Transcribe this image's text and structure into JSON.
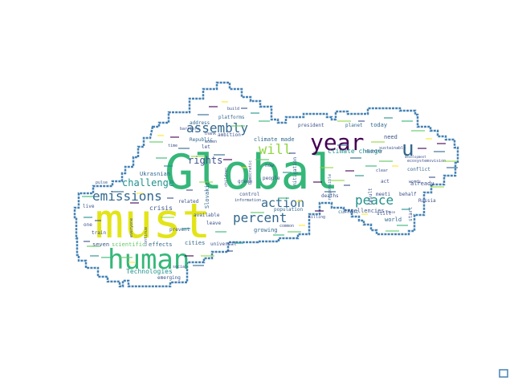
{
  "wordcloud": {
    "colors": {
      "outline": "#4682b4",
      "dark_teal": "#2f6b8e",
      "palette": [
        "#3b528b",
        "#21918c",
        "#35b779",
        "#5ec962",
        "#fde725",
        "#440154",
        "#31688e",
        "#90d743"
      ]
    },
    "words": [
      {
        "id": "w-global",
        "text": "Global",
        "color": "#35b779"
      },
      {
        "id": "w-must",
        "text": "must",
        "color": "#e3e418"
      },
      {
        "id": "w-human",
        "text": "human",
        "color": "#35b779"
      },
      {
        "id": "w-year",
        "text": "year",
        "color": "#440154"
      },
      {
        "id": "w-u",
        "text": "u",
        "color": "#31688e"
      },
      {
        "id": "w-emissions",
        "text": "emissions",
        "color": "#31688e"
      },
      {
        "id": "w-assembly",
        "text": "assembly",
        "color": "#31688e"
      },
      {
        "id": "w-percent",
        "text": "percent",
        "color": "#31688e"
      },
      {
        "id": "w-action",
        "text": "action",
        "color": "#31688e"
      },
      {
        "id": "w-peace",
        "text": "peace",
        "color": "#21918c"
      },
      {
        "id": "w-will",
        "text": "will",
        "color": "#90d743"
      },
      {
        "id": "w-challenge",
        "text": "challenge",
        "color": "#21918c"
      },
      {
        "id": "w-rights",
        "text": "rights",
        "color": "#3b528b"
      },
      {
        "id": "w-crisis",
        "text": "crisis",
        "color": "#3b528b"
      },
      {
        "id": "w-technologies",
        "text": "Technologies",
        "color": "#21918c"
      },
      {
        "id": "w-ukrasnian",
        "text": "Ukrasnian",
        "color": "#31688e"
      },
      {
        "id": "w-climate-change",
        "text": "climate change",
        "color": "#21918c"
      },
      {
        "id": "w-climate-made",
        "text": "climate made",
        "color": "#31688e"
      },
      {
        "id": "w-excellencies",
        "text": "excellencies",
        "color": "#3b528b"
      },
      {
        "id": "w-world",
        "text": "world",
        "color": "#31688e"
      },
      {
        "id": "w-today",
        "text": "today",
        "color": "#31688e"
      },
      {
        "id": "w-need",
        "text": "need",
        "color": "#3b528b"
      },
      {
        "id": "w-planet",
        "text": "planet",
        "color": "#31688e"
      },
      {
        "id": "w-president",
        "text": "president",
        "color": "#3b528b"
      },
      {
        "id": "w-platforms",
        "text": "platforms",
        "color": "#31688e"
      },
      {
        "id": "w-address",
        "text": "address",
        "color": "#31688e"
      },
      {
        "id": "w-build",
        "text": "build",
        "color": "#3b528b"
      },
      {
        "id": "w-republic",
        "text": "Republic",
        "color": "#31688e"
      },
      {
        "id": "w-ambition",
        "text": "ambition",
        "color": "#3b528b"
      },
      {
        "id": "w-let",
        "text": "let",
        "color": "#3b528b"
      },
      {
        "id": "w-seven",
        "text": "seven",
        "color": "#3b528b"
      },
      {
        "id": "w-train",
        "text": "train",
        "color": "#3b528b"
      },
      {
        "id": "w-effects",
        "text": "effects",
        "color": "#31688e"
      },
      {
        "id": "w-cities",
        "text": "cities",
        "color": "#31688e"
      },
      {
        "id": "w-emerging",
        "text": "emerging",
        "color": "#3b528b"
      },
      {
        "id": "w-prevent",
        "text": "prevent",
        "color": "#3b528b"
      },
      {
        "id": "w-available",
        "text": "available",
        "color": "#3b528b"
      },
      {
        "id": "w-leave",
        "text": "leave",
        "color": "#3b528b"
      },
      {
        "id": "w-universal",
        "text": "universal",
        "color": "#3b528b"
      },
      {
        "id": "w-related",
        "text": "related",
        "color": "#3b528b"
      },
      {
        "id": "w-women",
        "text": "women",
        "color": "#3b528b"
      },
      {
        "id": "w-growing",
        "text": "growing",
        "color": "#31688e"
      },
      {
        "id": "w-population",
        "text": "population",
        "color": "#31688e"
      },
      {
        "id": "w-people",
        "text": "people",
        "color": "#3b528b"
      },
      {
        "id": "w-green",
        "text": "green",
        "color": "#3b528b"
      },
      {
        "id": "w-now",
        "text": "now",
        "color": "#3b528b"
      },
      {
        "id": "w-democratic",
        "text": "Democratic",
        "color": "#3b528b"
      },
      {
        "id": "w-slovakia",
        "text": "Slovakia",
        "color": "#31688e"
      },
      {
        "id": "w-deaths",
        "text": "deaths",
        "color": "#3b528b"
      },
      {
        "id": "w-mitigation",
        "text": "mitigation",
        "color": "#31688e"
      },
      {
        "id": "w-responsible",
        "text": "responsible",
        "color": "#31688e"
      },
      {
        "id": "w-current",
        "text": "current",
        "color": "#31688e"
      },
      {
        "id": "w-still",
        "text": "still",
        "color": "#3b528b"
      },
      {
        "id": "w-already",
        "text": "already",
        "color": "#3b528b"
      },
      {
        "id": "w-act",
        "text": "act",
        "color": "#3b528b"
      },
      {
        "id": "w-russia",
        "text": "Russia",
        "color": "#3b528b"
      },
      {
        "id": "w-conflict",
        "text": "conflict",
        "color": "#31688e"
      },
      {
        "id": "w-behalf",
        "text": "behalf",
        "color": "#3b528b"
      },
      {
        "id": "w-start",
        "text": "start",
        "color": "#3b528b"
      },
      {
        "id": "w-result",
        "text": "result",
        "color": "#3b528b"
      },
      {
        "id": "w-meeti",
        "text": "meeti",
        "color": "#3b528b"
      },
      {
        "id": "w-dignity",
        "text": "dignity",
        "color": "#3b528b"
      },
      {
        "id": "w-ecosystem",
        "text": "ecosystemsvision",
        "color": "#3b528b"
      },
      {
        "id": "w-sustainable",
        "text": "sustainable",
        "color": "#3b528b"
      },
      {
        "id": "w-words",
        "text": "words",
        "color": "#3b528b"
      },
      {
        "id": "w-development",
        "text": "development",
        "color": "#3b528b"
      },
      {
        "id": "w-children",
        "text": "children",
        "color": "#3b528b"
      },
      {
        "id": "w-control",
        "text": "control",
        "color": "#3b528b"
      },
      {
        "id": "w-information",
        "text": "information",
        "color": "#3b528b"
      },
      {
        "id": "w-everyone",
        "text": "everyone",
        "color": "#3b528b"
      },
      {
        "id": "w-continue",
        "text": "continue",
        "color": "#3b528b"
      },
      {
        "id": "w-scientific",
        "text": "scientific",
        "color": "#5ec962"
      },
      {
        "id": "w-one",
        "text": "one",
        "color": "#3b528b"
      },
      {
        "id": "w-live",
        "text": "live",
        "color": "#3b528b"
      },
      {
        "id": "w-pulse",
        "text": "pulse",
        "color": "#3b528b"
      },
      {
        "id": "w-time",
        "text": "time",
        "color": "#3b528b"
      },
      {
        "id": "w-thank",
        "text": "thank",
        "color": "#3b528b"
      },
      {
        "id": "w-barriers",
        "text": "barriers",
        "color": "#3b528b"
      },
      {
        "id": "w-common",
        "text": "common",
        "color": "#3b528b"
      },
      {
        "id": "w-special",
        "text": "social",
        "color": "#3b528b"
      },
      {
        "id": "w-killing",
        "text": "killing",
        "color": "#3b528b"
      },
      {
        "id": "w-clear",
        "text": "clear",
        "color": "#3b528b"
      },
      {
        "id": "w-these",
        "text": "These",
        "color": "#3b528b"
      }
    ]
  }
}
